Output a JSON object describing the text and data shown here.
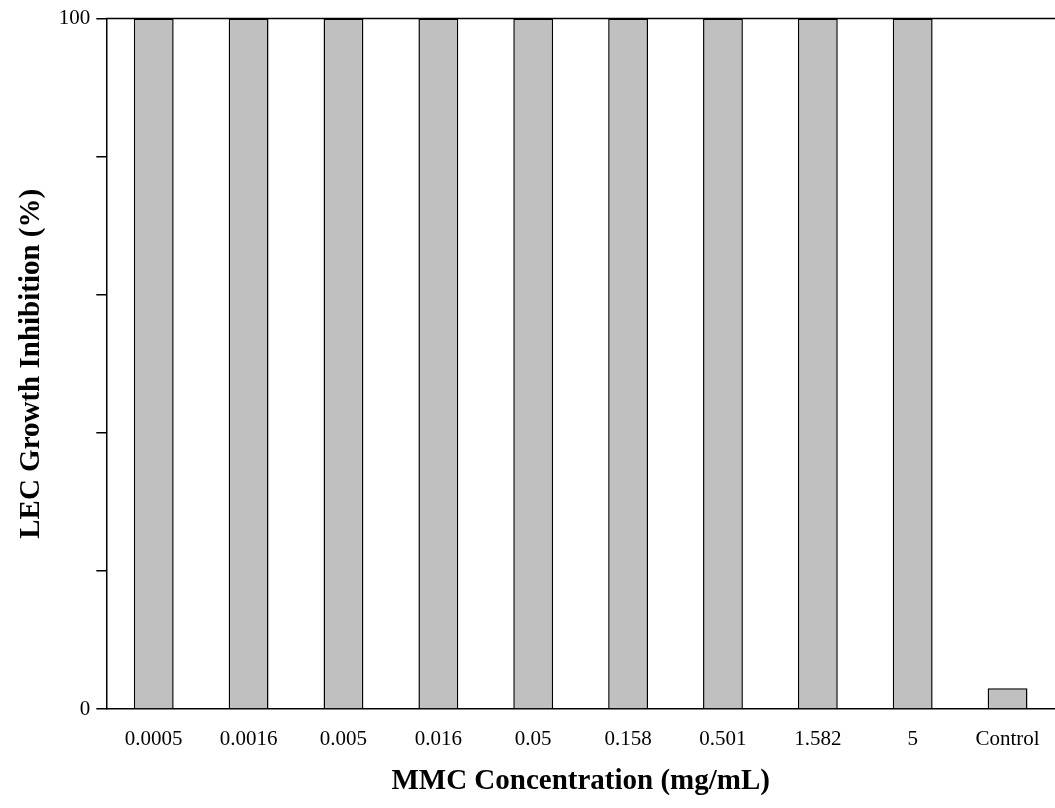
{
  "chart_data": {
    "type": "bar",
    "xlabel": "MMC Concentration (mg/mL)",
    "ylabel": "LEC Growth Inhibition (%)",
    "categories": [
      "0.0005",
      "0.0016",
      "0.005",
      "0.016",
      "0.05",
      "0.158",
      "0.501",
      "1.582",
      "5",
      "Control"
    ],
    "values": [
      100,
      100,
      100,
      100,
      100,
      100,
      100,
      100,
      100,
      3
    ],
    "color": "#c0c0c0",
    "ylim": [
      0,
      100
    ],
    "yticks": [
      0,
      {
        "value": 20,
        "label": null
      },
      {
        "value": 40,
        "label": null
      },
      {
        "value": 60,
        "label": null
      },
      {
        "value": 80,
        "label": null
      },
      100
    ],
    "grid": false,
    "legend": false
  }
}
